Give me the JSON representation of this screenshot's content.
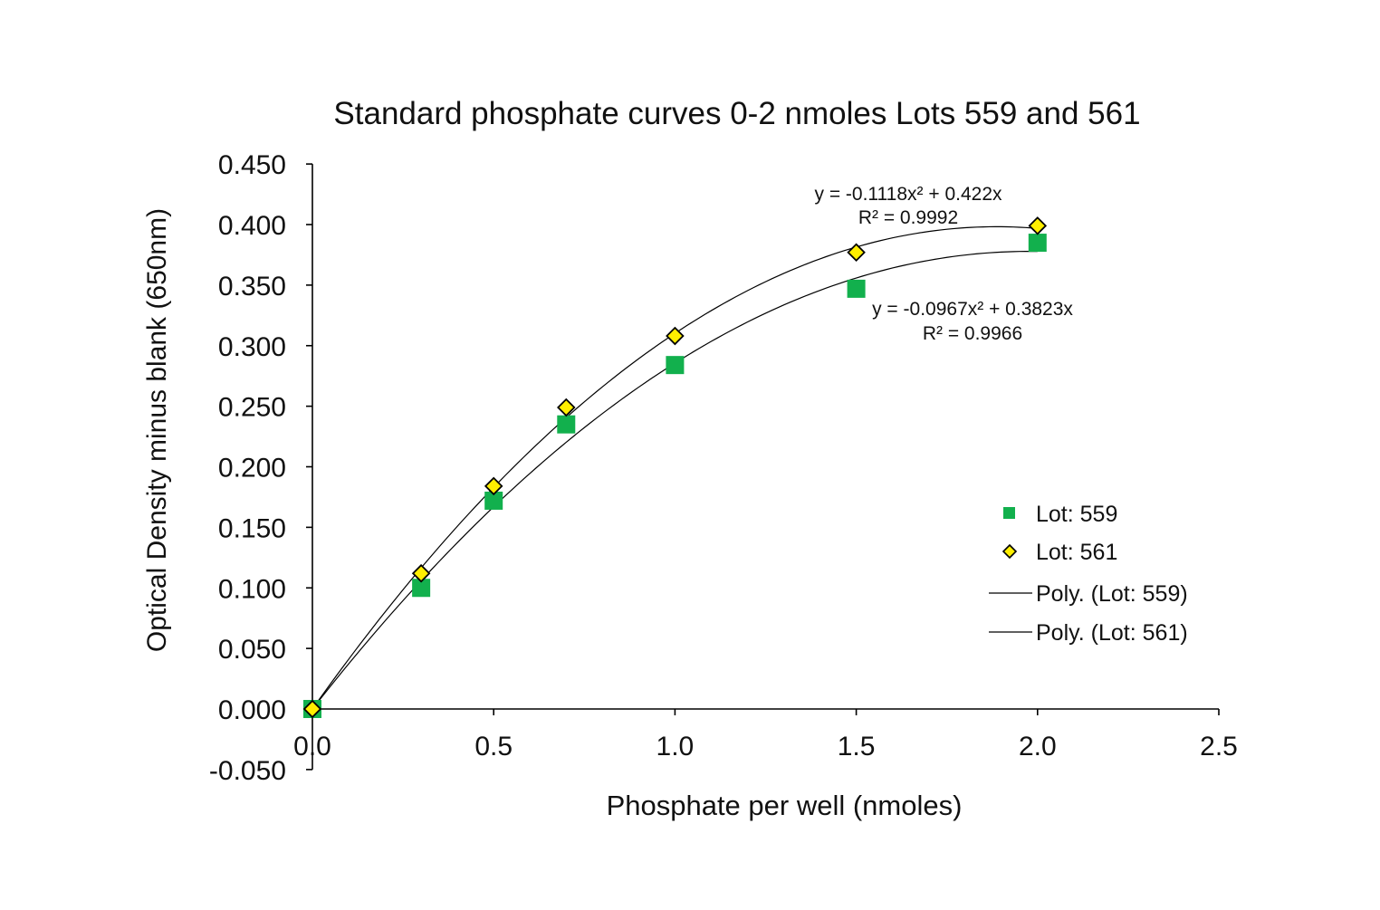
{
  "chart_data": {
    "type": "scatter",
    "title": "Standard phosphate curves 0-2 nmoles Lots 559 and 561",
    "xlabel": "Phosphate per well (nmoles)",
    "ylabel": "Optical Density minus blank (650nm)",
    "xlim": [
      0,
      2.5
    ],
    "ylim": [
      -0.05,
      0.45
    ],
    "x_ticks": [
      0,
      0.5,
      1,
      1.5,
      2,
      2.5
    ],
    "x_tick_labels": [
      "0.0",
      "0.5",
      "1.0",
      "1.5",
      "2.0",
      "2.5"
    ],
    "y_ticks": [
      -0.05,
      0,
      0.05,
      0.1,
      0.15,
      0.2,
      0.25,
      0.3,
      0.35,
      0.4,
      0.45
    ],
    "y_tick_labels": [
      "-0.050",
      "0.000",
      "0.050",
      "0.100",
      "0.150",
      "0.200",
      "0.250",
      "0.300",
      "0.350",
      "0.400",
      "0.450"
    ],
    "grid": false,
    "legend_position": "right",
    "series": [
      {
        "name": "Lot: 559",
        "marker": "square",
        "color": "#12b04d",
        "x": [
          0,
          0.3,
          0.5,
          0.7,
          1.0,
          1.5,
          2.0
        ],
        "y": [
          0.0,
          0.1,
          0.172,
          0.235,
          0.284,
          0.347,
          0.385
        ]
      },
      {
        "name": "Lot: 561",
        "marker": "diamond",
        "color": "#ffee00",
        "x": [
          0,
          0.3,
          0.5,
          0.7,
          1.0,
          1.5,
          2.0
        ],
        "y": [
          0.0,
          0.112,
          0.184,
          0.249,
          0.308,
          0.377,
          0.399
        ]
      }
    ],
    "trendlines": [
      {
        "name": "Poly. (Lot: 559)",
        "a": -0.0967,
        "b": 0.3823,
        "equation": "y = -0.0967x² + 0.3823x",
        "r2": "R² = 0.9966"
      },
      {
        "name": "Poly. (Lot: 561)",
        "a": -0.1118,
        "b": 0.422,
        "equation": "y = -0.1118x² + 0.422x",
        "r2": "R² = 0.9992"
      }
    ]
  }
}
